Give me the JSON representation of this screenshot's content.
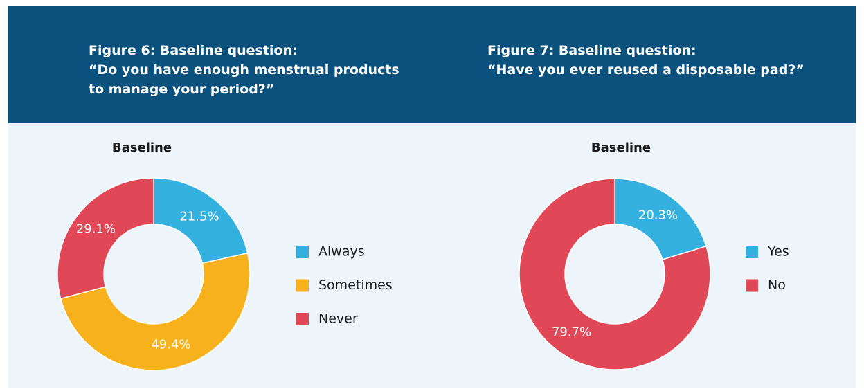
{
  "chart_data": [
    {
      "type": "donut",
      "title": "Figure 6: Baseline question:",
      "subtitle": "“Do you have enough menstrual products to manage your period?”",
      "label": "Baseline",
      "categories": [
        "Always",
        "Sometimes",
        "Never"
      ],
      "values": [
        21.5,
        49.4,
        29.1
      ],
      "value_labels": [
        "21.5%",
        "49.4%",
        "29.1%"
      ],
      "colors": [
        "#35b1e0",
        "#f6b11d",
        "#e04858"
      ],
      "legend": "right"
    },
    {
      "type": "donut",
      "title": "Figure 7: Baseline question:",
      "subtitle": "“Have you ever reused a disposable pad?”",
      "label": "Baseline",
      "categories": [
        "Yes",
        "No"
      ],
      "values": [
        20.3,
        79.7
      ],
      "value_labels": [
        "20.3%",
        "79.7%"
      ],
      "colors": [
        "#35b1e0",
        "#e04858"
      ],
      "legend": "right"
    }
  ]
}
